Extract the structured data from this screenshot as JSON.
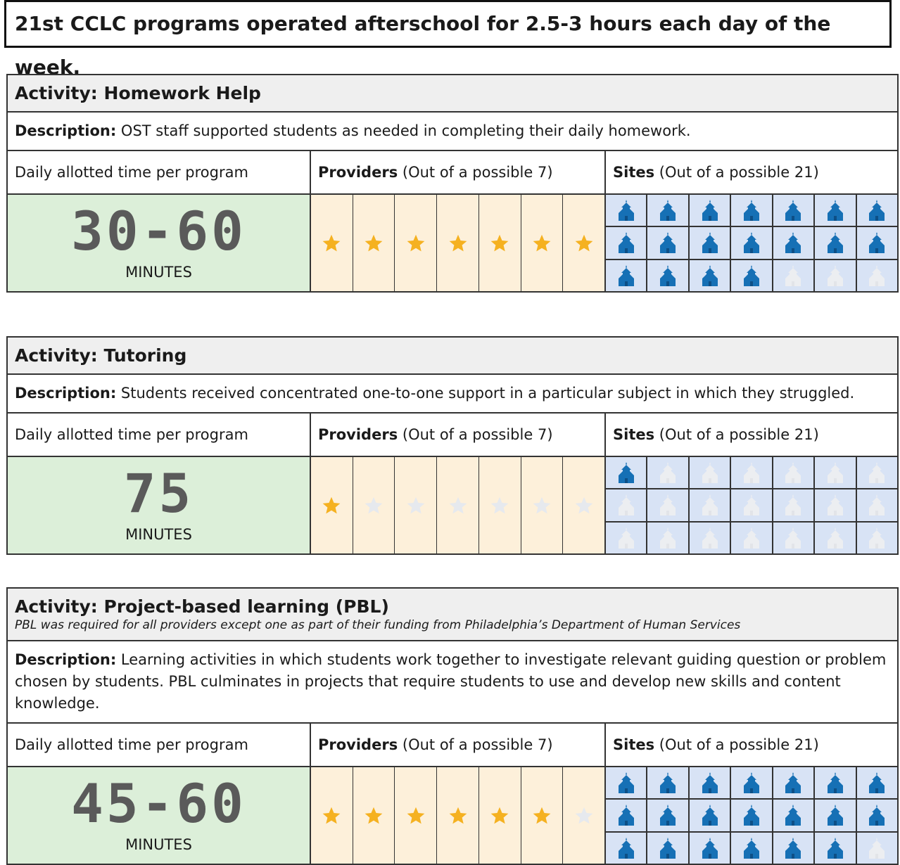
{
  "header": {
    "title": "21st CCLC programs operated afterschool for 2.5-3 hours each day of the week."
  },
  "sections": [
    {
      "activity_label": "Activity:",
      "activity": "Homework Help",
      "description_label": "Description:",
      "description": "OST staff supported students as needed in completing their daily homework.",
      "time_label": "Daily allotted time per program",
      "time": "30-60",
      "time_unit": "MINUTES",
      "providers": {
        "label": "Providers",
        "text_before": "(Out of a possible",
        "possible": 7,
        "text_after": ")",
        "count": 7
      },
      "sites": {
        "label": "Sites",
        "text_before": "(Out of a possible",
        "possible": 21,
        "text_after": ")",
        "count": 18
      }
    },
    {
      "activity_label": "Activity:",
      "activity": "Tutoring",
      "description_label": "Description:",
      "description": "Students received concentrated one-to-one support in a particular subject in which they struggled.",
      "time_label": "Daily allotted time per program",
      "time": "75",
      "time_unit": "MINUTES",
      "providers": {
        "label": "Providers",
        "text_before": "(Out of a possible",
        "possible": 7,
        "text_after": ")",
        "count": 1
      },
      "sites": {
        "label": "Sites",
        "text_before": "(Out of a possible",
        "possible": 21,
        "text_after": ")",
        "count": 1
      }
    },
    {
      "activity_label": "Activity:",
      "activity": "Project-based learning (PBL)",
      "note": "PBL was required for all providers except one as part of their funding from Philadelphia’s Department of Human Services",
      "description_label": "Description:",
      "description": "Learning activities in which students work together to investigate relevant guiding question or problem chosen by students.  PBL culminates in projects that require students to use and develop new skills and content knowledge.",
      "time_label": "Daily allotted time per program",
      "time": "45-60",
      "time_unit": "MINUTES",
      "providers": {
        "label": "Providers",
        "text_before": "(Out of a possible",
        "possible": 7,
        "text_after": ")",
        "count": 6
      },
      "sites": {
        "label": "Sites",
        "text_before": "(Out of a possible",
        "possible": 21,
        "text_after": ")",
        "count": 20
      }
    }
  ]
}
